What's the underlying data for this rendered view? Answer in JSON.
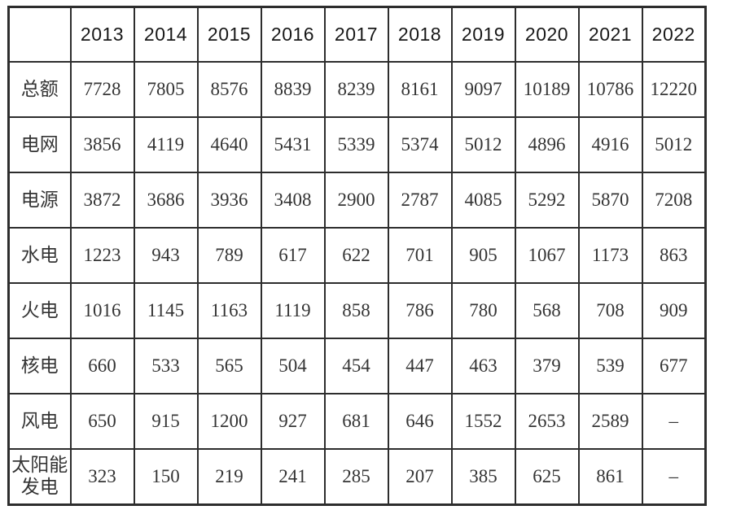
{
  "chart_data": {
    "type": "table",
    "corner_label": "",
    "columns": [
      "2013",
      "2014",
      "2015",
      "2016",
      "2017",
      "2018",
      "2019",
      "2020",
      "2021",
      "2022"
    ],
    "rows": [
      {
        "label": "总额",
        "values": [
          "7728",
          "7805",
          "8576",
          "8839",
          "8239",
          "8161",
          "9097",
          "10189",
          "10786",
          "12220"
        ]
      },
      {
        "label": "电网",
        "values": [
          "3856",
          "4119",
          "4640",
          "5431",
          "5339",
          "5374",
          "5012",
          "4896",
          "4916",
          "5012"
        ]
      },
      {
        "label": "电源",
        "values": [
          "3872",
          "3686",
          "3936",
          "3408",
          "2900",
          "2787",
          "4085",
          "5292",
          "5870",
          "7208"
        ]
      },
      {
        "label": "水电",
        "values": [
          "1223",
          "943",
          "789",
          "617",
          "622",
          "701",
          "905",
          "1067",
          "1173",
          "863"
        ]
      },
      {
        "label": "火电",
        "values": [
          "1016",
          "1145",
          "1163",
          "1119",
          "858",
          "786",
          "780",
          "568",
          "708",
          "909"
        ]
      },
      {
        "label": "核电",
        "values": [
          "660",
          "533",
          "565",
          "504",
          "454",
          "447",
          "463",
          "379",
          "539",
          "677"
        ]
      },
      {
        "label": "风电",
        "values": [
          "650",
          "915",
          "1200",
          "927",
          "681",
          "646",
          "1552",
          "2653",
          "2589",
          "–"
        ]
      },
      {
        "label": "太阳能发电",
        "values": [
          "323",
          "150",
          "219",
          "241",
          "285",
          "207",
          "385",
          "625",
          "861",
          "–"
        ]
      }
    ],
    "layout": {
      "grid": "full-borders",
      "missing_value_symbol": "–"
    }
  },
  "style": {
    "background": "#ffffff",
    "border_color": "#2d2d2d",
    "header_text_color": "#181818",
    "body_text_color": "#343434"
  }
}
